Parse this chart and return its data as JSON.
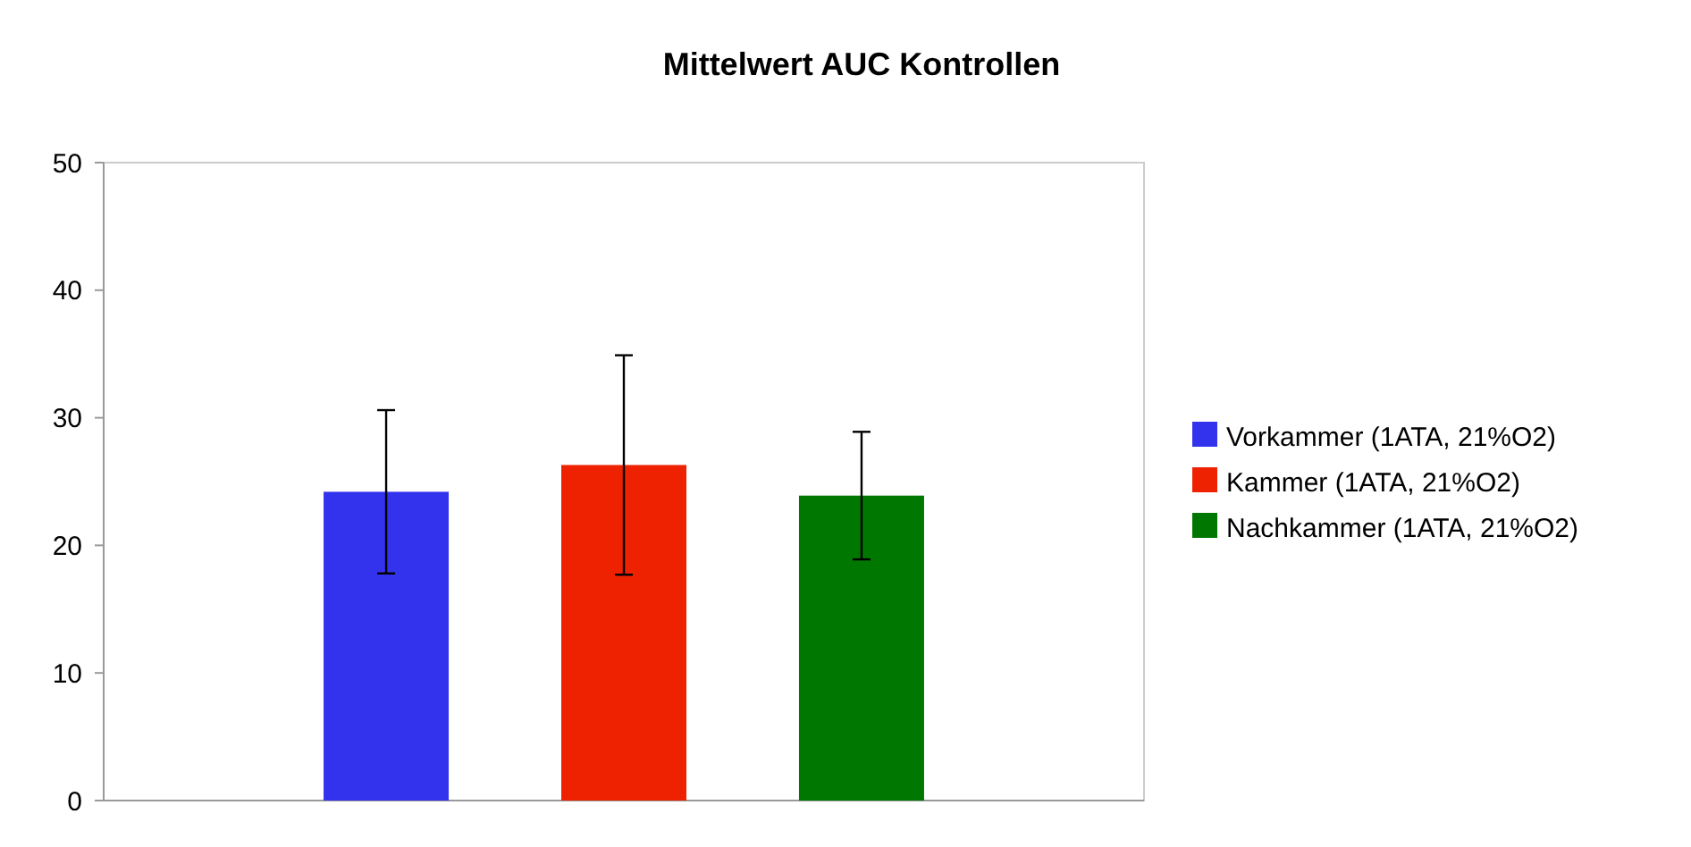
{
  "chart_data": {
    "type": "bar",
    "title": "Mittelwert AUC Kontrollen",
    "categories": [
      null
    ],
    "series": [
      {
        "name": "Vorkammer (1ATA, 21%O2)",
        "color": "#3333ee",
        "values": [
          24.2
        ],
        "errors": [
          6.4
        ]
      },
      {
        "name": "Kammer (1ATA, 21%O2)",
        "color": "#ee2200",
        "values": [
          26.3
        ],
        "errors": [
          8.6
        ]
      },
      {
        "name": "Nachkammer (1ATA, 21%O2)",
        "color": "#007700",
        "values": [
          23.9
        ],
        "errors": [
          5
        ]
      }
    ],
    "ylim": [
      0,
      50
    ],
    "yticks": [
      0,
      10,
      20,
      30,
      40,
      50
    ],
    "grid": false,
    "legend": "right"
  }
}
